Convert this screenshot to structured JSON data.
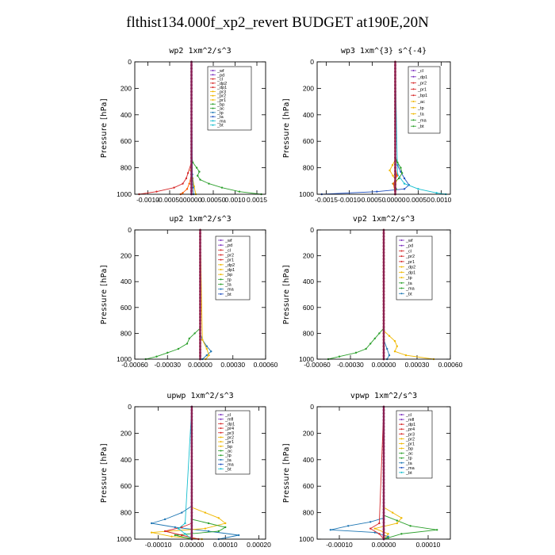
{
  "title": "flthist134.000f_xp2_revert  BUDGET at190E,20N",
  "chart_data": [
    {
      "type": "line",
      "title": "wp2   1xm^2/s^3",
      "ylabel": "Pressure [hPa]",
      "ylim": [
        1000,
        0
      ],
      "xlim": [
        -0.0013,
        0.0017
      ],
      "xticks": [
        "-0.0010",
        "-0.00050",
        ".00000",
        "0.00050",
        "0.0010",
        "0.0015"
      ],
      "xtick_values": [
        -0.001,
        -0.0005,
        0,
        0.0005,
        0.001,
        0.0015
      ],
      "yticks": [
        "0",
        "200",
        "400",
        "600",
        "800",
        "1000"
      ],
      "legend": [
        "_wf",
        "_pd",
        "_cl",
        "_dp2",
        "_dp1",
        "_pr3",
        "_pr2",
        "_pr1",
        "_bp",
        "_ac",
        "_tp",
        "_ta",
        "_ma",
        "_bt"
      ],
      "series": [
        {
          "name": "_pr1",
          "color": "#2ca02c",
          "y": [
            0,
            700,
            760,
            800,
            830,
            860,
            890,
            920,
            950,
            980,
            1000
          ],
          "values": [
            0,
            0,
            3e-05,
            0.00012,
            0.00018,
            0.00014,
            0.0002,
            0.0004,
            0.0007,
            0.0011,
            0.0016
          ]
        },
        {
          "name": "_pr2",
          "color": "#f0b800",
          "y": [
            0,
            760,
            820,
            880,
            940,
            1000
          ],
          "values": [
            0,
            0,
            -2e-05,
            3e-05,
            6e-05,
            0.0001
          ]
        },
        {
          "name": "_dp2",
          "color": "#d62728",
          "y": [
            0,
            760,
            840,
            880,
            920,
            950,
            980,
            1000
          ],
          "values": [
            0,
            0,
            -8e-05,
            -0.00012,
            -0.0002,
            -0.0004,
            -0.0008,
            -0.0012
          ]
        },
        {
          "name": "_dp1",
          "color": "#ff5a00",
          "y": [
            0,
            850,
            920,
            960,
            990,
            1000
          ],
          "values": [
            0,
            0,
            -5e-05,
            -0.0001,
            -0.0002,
            -0.00025
          ]
        },
        {
          "name": "_tp",
          "color": "#1f77b4",
          "y": [
            0,
            850,
            950,
            1000
          ],
          "values": [
            0,
            2e-05,
            4e-05,
            5e-05
          ]
        },
        {
          "name": "_wf",
          "color": "#7b2fbe",
          "y": [
            0,
            1000
          ],
          "values": [
            0,
            0
          ]
        },
        {
          "name": "_bt",
          "color": "#8b2252",
          "y": [
            0,
            1000
          ],
          "values": [
            0,
            0
          ]
        }
      ]
    },
    {
      "type": "line",
      "title": "wp3   1xm^{3} s^{-4}",
      "ylabel": "Pressure [hPa]",
      "ylim": [
        1000,
        0
      ],
      "xlim": [
        -0.0017,
        0.0012
      ],
      "xticks": [
        "-0.0015",
        "-0.0010",
        "-0.00050",
        ".00000",
        "0.00050",
        "0.0010"
      ],
      "xtick_values": [
        -0.0015,
        -0.001,
        -0.0005,
        0,
        0.0005,
        0.001
      ],
      "yticks": [
        "0",
        "200",
        "400",
        "600",
        "800",
        "1000"
      ],
      "legend": [
        "_cl",
        "_dp1",
        "_pr2",
        "_pr1",
        "_bp1",
        "_ac",
        "_tp",
        "_ta",
        "_ma",
        "_bt"
      ],
      "series": [
        {
          "name": "_tp",
          "color": "#1f4fbf",
          "y": [
            0,
            700,
            780,
            830,
            880,
            930,
            960,
            980,
            1000
          ],
          "values": [
            0,
            0,
            5e-05,
            0.00012,
            0.0002,
            0.0003,
            0.0002,
            -0.0004,
            -0.0016
          ]
        },
        {
          "name": "_ta",
          "color": "#17becf",
          "y": [
            0,
            850,
            920,
            960,
            990,
            1000
          ],
          "values": [
            0,
            5e-05,
            0.0002,
            0.0005,
            0.0009,
            0.0011
          ]
        },
        {
          "name": "_pr1",
          "color": "#2ca02c",
          "y": [
            0,
            720,
            760,
            800,
            840,
            880,
            920,
            960,
            1000
          ],
          "values": [
            0,
            0,
            5e-05,
            0.00012,
            0.00015,
            8e-05,
            -5e-05,
            2e-05,
            0
          ]
        },
        {
          "name": "_pr2",
          "color": "#f0b800",
          "y": [
            0,
            740,
            780,
            820,
            860,
            900,
            1000
          ],
          "values": [
            0,
            0,
            -6e-05,
            -0.00012,
            -5e-05,
            2e-05,
            0
          ]
        },
        {
          "name": "_dp1",
          "color": "#ff5a00",
          "y": [
            0,
            800,
            860,
            920,
            1000
          ],
          "values": [
            0,
            0,
            4e-05,
            -4e-05,
            0
          ]
        },
        {
          "name": "_cl",
          "color": "#d62728",
          "y": [
            0,
            1000
          ],
          "values": [
            0,
            0
          ]
        },
        {
          "name": "_bt",
          "color": "#8b2252",
          "y": [
            0,
            1000
          ],
          "values": [
            0,
            0
          ]
        }
      ]
    },
    {
      "type": "line",
      "title": "up2   1xm^2/s^3",
      "ylabel": "Pressure [hPa]",
      "ylim": [
        1000,
        0
      ],
      "xlim": [
        -0.0006,
        0.0006
      ],
      "xticks": [
        "-0.00060",
        "-0.00030",
        "0.00000",
        "0.00030",
        "0.00060"
      ],
      "xtick_values": [
        -0.0006,
        -0.0003,
        0,
        0.0003,
        0.0006
      ],
      "yticks": [
        "0",
        "200",
        "400",
        "600",
        "800",
        "1000"
      ],
      "legend": [
        "_wf",
        "_pd",
        "_cl",
        "_pr2",
        "_pr1",
        "_dp2",
        "_dp1",
        "_bp",
        "_tp",
        "_ta",
        "_ma",
        "_bt"
      ],
      "series": [
        {
          "name": "_dp2",
          "color": "#2ca02c",
          "y": [
            0,
            760,
            800,
            840,
            880,
            920,
            950,
            980,
            1000
          ],
          "values": [
            0,
            0,
            -5e-05,
            -0.0001,
            -0.00012,
            -0.0002,
            -0.0003,
            -0.0004,
            -0.0005
          ]
        },
        {
          "name": "_tp",
          "color": "#1f77b4",
          "y": [
            0,
            800,
            850,
            900,
            940,
            970,
            1000
          ],
          "values": [
            0,
            0,
            2e-05,
            6e-05,
            0.0001,
            6e-05,
            2e-05
          ]
        },
        {
          "name": "_pr2",
          "color": "#f0b800",
          "y": [
            0,
            850,
            920,
            970,
            1000
          ],
          "values": [
            0,
            2e-05,
            6e-05,
            8e-05,
            5e-05
          ]
        },
        {
          "name": "_cl",
          "color": "#d62728",
          "y": [
            0,
            1000
          ],
          "values": [
            0,
            0
          ]
        },
        {
          "name": "_bt",
          "color": "#8b2252",
          "y": [
            0,
            1000
          ],
          "values": [
            0,
            0
          ]
        }
      ]
    },
    {
      "type": "line",
      "title": "vp2   1xm^2/s^3",
      "ylabel": "Pressure [hPa]",
      "ylim": [
        1000,
        0
      ],
      "xlim": [
        -0.0006,
        0.0006
      ],
      "xticks": [
        "-0.00060",
        "-0.00030",
        "0.00000",
        "0.00030",
        "0.00060"
      ],
      "xtick_values": [
        -0.0006,
        -0.0003,
        0,
        0.0003,
        0.0006
      ],
      "yticks": [
        "0",
        "200",
        "400",
        "600",
        "800",
        "1000"
      ],
      "legend": [
        "_wf",
        "_pd",
        "_cl",
        "_pr2",
        "_pr1",
        "_dp2",
        "_dp1",
        "_tp",
        "_ta",
        "_ma",
        "_bt"
      ],
      "series": [
        {
          "name": "_dp2",
          "color": "#2ca02c",
          "y": [
            0,
            760,
            800,
            840,
            880,
            920,
            950,
            980,
            1000
          ],
          "values": [
            0,
            0,
            -4e-05,
            -8e-05,
            -0.00012,
            -0.00016,
            -0.00025,
            -0.0004,
            -0.0005
          ]
        },
        {
          "name": "_pr2",
          "color": "#f0b800",
          "y": [
            0,
            780,
            820,
            860,
            900,
            940,
            970,
            1000
          ],
          "values": [
            0,
            0,
            5e-05,
            0.0001,
            0.00012,
            0.0001,
            0.0002,
            0.00045
          ]
        },
        {
          "name": "_tp",
          "color": "#1f77b4",
          "y": [
            0,
            850,
            920,
            970,
            1000
          ],
          "values": [
            0,
            0,
            3e-05,
            5e-05,
            3e-05
          ]
        },
        {
          "name": "_cl",
          "color": "#d62728",
          "y": [
            0,
            1000
          ],
          "values": [
            0,
            0
          ]
        },
        {
          "name": "_bt",
          "color": "#8b2252",
          "y": [
            0,
            1000
          ],
          "values": [
            0,
            0
          ]
        }
      ]
    },
    {
      "type": "line",
      "title": "upwp   1xm^2/s^3",
      "ylabel": "Pressure [hPa]",
      "ylim": [
        1000,
        0
      ],
      "xlim": [
        -0.00017,
        0.00022
      ],
      "xticks": [
        "-0.00010",
        "0.00000",
        "0.00010",
        "0.00020"
      ],
      "xtick_values": [
        -0.0001,
        0,
        0.0001,
        0.0002
      ],
      "yticks": [
        "0",
        "200",
        "400",
        "600",
        "800",
        "1000"
      ],
      "legend": [
        "_cl",
        "_mfl",
        "_dp1",
        "_pr4",
        "_pr3",
        "_pr2",
        "_pr1",
        "_bp",
        "_ac",
        "_tp",
        "_ta",
        "_ma",
        "_bt"
      ],
      "series": [
        {
          "name": "_tp",
          "color": "#1f77b4",
          "y": [
            0,
            750,
            800,
            850,
            880,
            910,
            940,
            970,
            1000
          ],
          "values": [
            0,
            0,
            -3e-05,
            -8e-05,
            -0.00012,
            -5e-05,
            5e-05,
            0.00014,
            8e-05
          ]
        },
        {
          "name": "_pr2",
          "color": "#f0b800",
          "y": [
            0,
            760,
            800,
            840,
            880,
            920,
            950,
            980,
            1000
          ],
          "values": [
            0,
            0,
            4e-05,
            8e-05,
            0.0001,
            4e-05,
            -0.00012,
            -6e-05,
            3e-05
          ]
        },
        {
          "name": "_pr1",
          "color": "#2ca02c",
          "y": [
            0,
            850,
            880,
            910,
            940,
            970,
            1000
          ],
          "values": [
            0,
            0,
            5e-05,
            0.0001,
            8e-05,
            -5e-05,
            0
          ]
        },
        {
          "name": "_pr3",
          "color": "#d62728",
          "y": [
            0,
            880,
            910,
            940,
            970,
            1000
          ],
          "values": [
            0,
            0,
            -3e-05,
            -8e-05,
            -3e-05,
            2e-05
          ]
        },
        {
          "name": "_ta",
          "color": "#17becf",
          "y": [
            0,
            880,
            920,
            960,
            1000
          ],
          "values": [
            0,
            -2e-05,
            -4e-05,
            -2e-05,
            0
          ]
        },
        {
          "name": "_cl",
          "color": "#7b2fbe",
          "y": [
            0,
            1000
          ],
          "values": [
            0,
            0
          ]
        },
        {
          "name": "_bt",
          "color": "#8b2252",
          "y": [
            0,
            1000
          ],
          "values": [
            0,
            0
          ]
        }
      ]
    },
    {
      "type": "line",
      "title": "vpwp   1xm^2/s^3",
      "ylabel": "Pressure [hPa]",
      "ylim": [
        1000,
        0
      ],
      "xlim": [
        -0.00015,
        0.00015
      ],
      "xticks": [
        "-0.00010",
        "0.00000",
        "0.00010"
      ],
      "xtick_values": [
        -0.0001,
        0,
        0.0001
      ],
      "yticks": [
        "0",
        "200",
        "400",
        "600",
        "800",
        "1000"
      ],
      "legend": [
        "_cl",
        "_mfl",
        "_dp1",
        "_pr4",
        "_pr3",
        "_pr2",
        "_pr1",
        "_bp",
        "_ac",
        "_tp",
        "_ta",
        "_ma",
        "_bt"
      ],
      "series": [
        {
          "name": "_tp",
          "color": "#1f77b4",
          "y": [
            0,
            840,
            870,
            900,
            930,
            950,
            980,
            1000
          ],
          "values": [
            0,
            0,
            -3e-05,
            -8e-05,
            -0.00012,
            -2e-05,
            1e-05,
            0
          ]
        },
        {
          "name": "_pr1",
          "color": "#2ca02c",
          "y": [
            0,
            820,
            860,
            900,
            930,
            960,
            990,
            1000
          ],
          "values": [
            0,
            0,
            3e-05,
            6e-05,
            0.00012,
            4e-05,
            1e-05,
            0
          ]
        },
        {
          "name": "_pr2",
          "color": "#f0b800",
          "y": [
            0,
            760,
            800,
            840,
            880,
            920,
            960,
            1000
          ],
          "values": [
            0,
            0,
            2e-05,
            4e-05,
            3e-05,
            -2e-05,
            1e-05,
            0
          ]
        },
        {
          "name": "_pr3",
          "color": "#d62728",
          "y": [
            0,
            880,
            920,
            960,
            1000
          ],
          "values": [
            0,
            -1e-05,
            -3e-05,
            -1e-05,
            0
          ]
        },
        {
          "name": "_cl",
          "color": "#7b2fbe",
          "y": [
            0,
            1000
          ],
          "values": [
            0,
            0
          ]
        },
        {
          "name": "_bt",
          "color": "#8b2252",
          "y": [
            0,
            1000
          ],
          "values": [
            0,
            0
          ]
        }
      ]
    }
  ]
}
